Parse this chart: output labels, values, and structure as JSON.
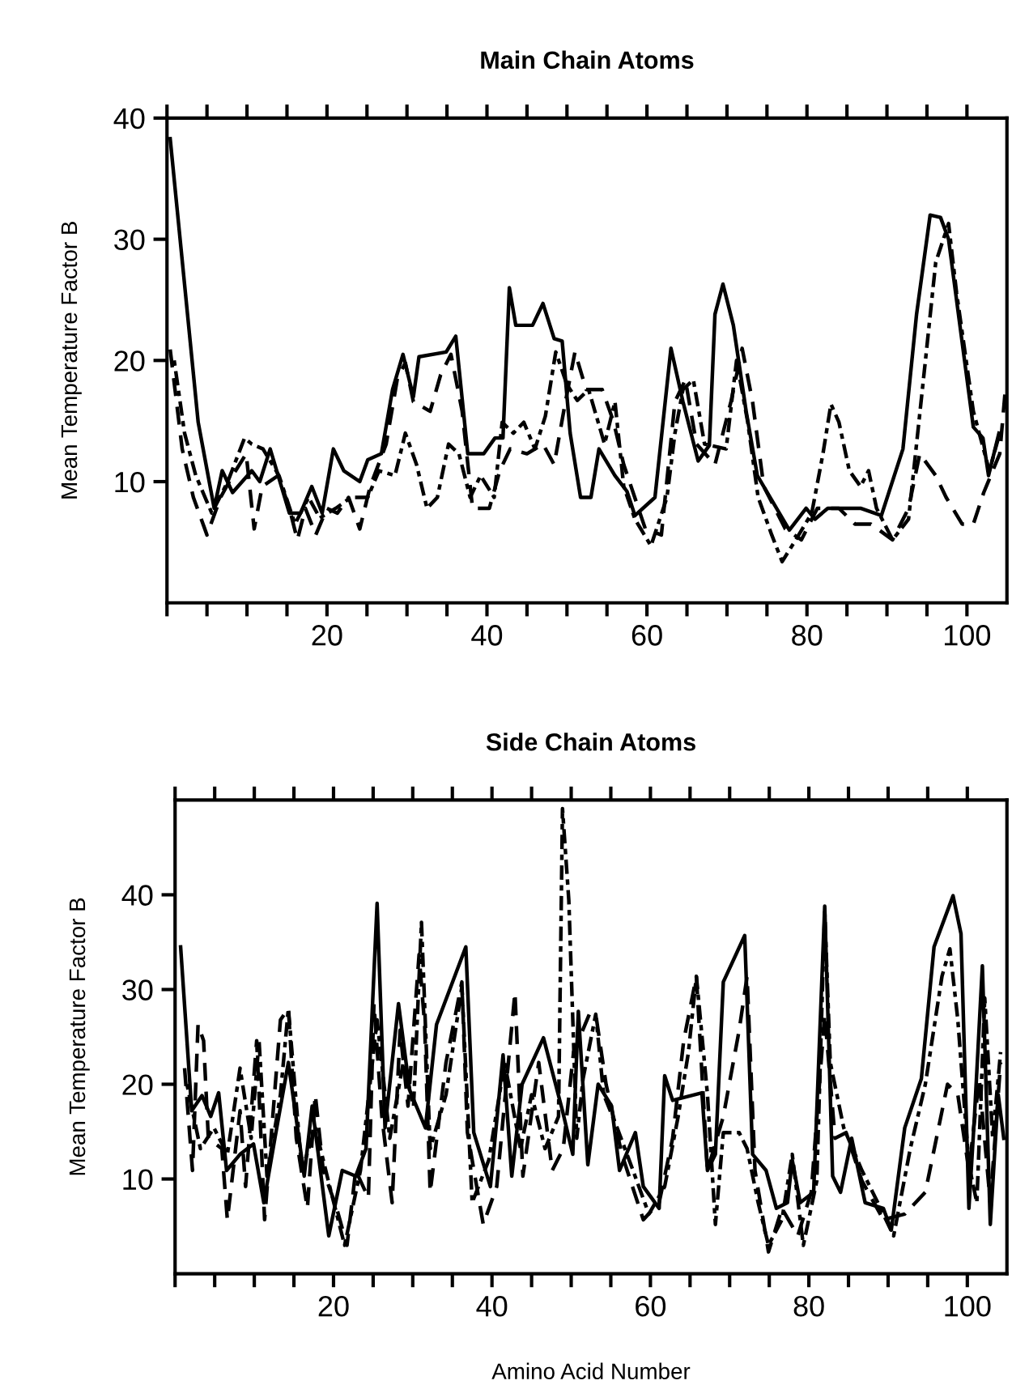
{
  "chart_data": [
    {
      "type": "line",
      "title": "Main Chain Atoms",
      "ylabel": "Mean Temperature Factor B",
      "xlim": [
        0,
        105
      ],
      "ylim": [
        0,
        40
      ],
      "xticks": [
        {
          "value": 0,
          "label": null
        },
        {
          "value": 5,
          "label": null
        },
        {
          "value": 10,
          "label": null
        },
        {
          "value": 15,
          "label": null
        },
        20,
        {
          "value": 25,
          "label": null
        },
        {
          "value": 30,
          "label": null
        },
        {
          "value": 35,
          "label": null
        },
        40,
        {
          "value": 45,
          "label": null
        },
        {
          "value": 50,
          "label": null
        },
        {
          "value": 55,
          "label": null
        },
        60,
        {
          "value": 65,
          "label": null
        },
        {
          "value": 70,
          "label": null
        },
        {
          "value": 75,
          "label": null
        },
        80,
        {
          "value": 85,
          "label": null
        },
        {
          "value": 90,
          "label": null
        },
        {
          "value": 95,
          "label": null
        },
        100
      ],
      "yticks": [
        10,
        20,
        30,
        40
      ],
      "series": [
        {
          "color": "#000000",
          "line_style": "solid",
          "x": [
            0.4,
            3.9,
            5.9,
            6.9,
            8.2,
            10.6,
            11.6,
            12.9,
            15.3,
            16.7,
            18.1,
            19.4,
            20.8,
            22.1,
            24.1,
            25.1,
            26.8,
            28.2,
            29.5,
            30.8,
            31.5,
            34.9,
            36.1,
            37.6,
            39.6,
            41,
            42,
            42.8,
            43.6,
            45.7,
            47,
            48.4,
            49.4,
            50.4,
            51.7,
            53,
            54,
            56,
            57.5,
            58.5,
            61,
            63,
            64.5,
            66.4,
            67.8,
            68.5,
            69.5,
            70.8,
            72.4,
            73.8,
            77.8,
            79.9,
            81,
            82.6,
            86.7,
            89.3,
            92,
            93.7,
            95.4,
            96.7,
            97.7,
            100.8,
            102,
            102.7,
            104
          ],
          "values": [
            38.3,
            14.9,
            7.8,
            10.9,
            9.1,
            10.9,
            10,
            12.7,
            7.4,
            7.4,
            9.6,
            7.4,
            12.7,
            10.9,
            10,
            11.8,
            12.3,
            17.6,
            20.5,
            17,
            20.3,
            20.7,
            22,
            12.3,
            12.3,
            13.6,
            13.6,
            26,
            22.9,
            22.9,
            24.7,
            21.8,
            21.6,
            14,
            8.7,
            8.7,
            12.7,
            10.5,
            9.2,
            7.2,
            8.7,
            21,
            16.6,
            11.7,
            13,
            23.8,
            26.3,
            22.9,
            15.8,
            10.5,
            6,
            7.8,
            6.9,
            7.8,
            7.8,
            7.2,
            12.7,
            23.8,
            32,
            31.8,
            30,
            14.5,
            13.6,
            10.5,
            14
          ]
        },
        {
          "color": "#000000",
          "line_style": "dashed",
          "x": [
            0.4,
            1.9,
            3.3,
            5,
            6.7,
            8.2,
            9.9,
            10.9,
            11.9,
            13.9,
            15.3,
            16.3,
            17.3,
            18.6,
            20,
            21.3,
            22.7,
            24.1,
            25.4,
            27.4,
            28.8,
            29.8,
            30.8,
            32.9,
            34.2,
            35.5,
            36.9,
            38.2,
            40.3,
            41.6,
            42.9,
            45,
            47,
            48.4,
            49.7,
            51,
            52.4,
            54.4,
            55.8,
            57.1,
            59.8,
            61.8,
            63.5,
            64.8,
            66.2,
            68.5,
            70.5,
            71.9,
            73.2,
            74.6,
            77.3,
            79.3,
            81.3,
            84,
            86,
            88,
            90.7,
            92.7,
            94.1,
            96.1,
            97.4,
            99.4,
            100.8,
            102.1,
            104.1,
            104.8
          ],
          "values": [
            20.9,
            12.7,
            8.7,
            5.6,
            8.7,
            10.5,
            12.3,
            6.1,
            9.6,
            10.5,
            7.8,
            5.2,
            7.8,
            5.6,
            7.8,
            7.4,
            8.7,
            6.1,
            9.6,
            13.1,
            18.5,
            19.8,
            16.6,
            15.8,
            18.8,
            20.5,
            15.8,
            7.8,
            7.8,
            10.9,
            12.7,
            12.3,
            13.1,
            11.4,
            16.2,
            20.7,
            17.6,
            17.6,
            15,
            11.4,
            6.1,
            5.6,
            16.6,
            18.4,
            13.1,
            11.4,
            16.6,
            21,
            16.6,
            9.6,
            6.1,
            5.2,
            7.8,
            7.8,
            6.5,
            6.5,
            5.2,
            7.8,
            12.3,
            10.5,
            8.7,
            6.5,
            6.5,
            9.1,
            12.3,
            17.6
          ]
        },
        {
          "color": "#000000",
          "line_style": "dotted",
          "x": [
            0.9,
            2.2,
            3.6,
            5.6,
            7.6,
            9.7,
            10.6,
            12,
            14,
            16,
            17.7,
            19.1,
            21.1,
            23,
            25.1,
            26.5,
            28.5,
            29.8,
            31.2,
            32.5,
            33.8,
            35.2,
            36.5,
            37.9,
            39.2,
            40.9,
            41.9,
            43.3,
            44.6,
            46,
            47.3,
            48.6,
            50,
            51.3,
            52.7,
            54.7,
            56,
            57.1,
            58.5,
            60.5,
            62.5,
            63.5,
            64.5,
            65.8,
            67.2,
            69.9,
            71.2,
            72.6,
            73.9,
            75.6,
            76.9,
            78.6,
            80.6,
            82,
            83,
            84,
            85.3,
            86.7,
            87.7,
            88.7,
            90.7,
            92.7,
            94.7,
            96.1,
            97.7,
            98.7,
            100.8,
            102.8,
            104.1
          ],
          "values": [
            20,
            14,
            10.5,
            7.4,
            10,
            13.6,
            13.1,
            12.7,
            10.5,
            6.5,
            8.7,
            7,
            7.8,
            8.7,
            8.7,
            10.9,
            10.5,
            14,
            11.4,
            7.8,
            8.7,
            13.1,
            12.3,
            8.7,
            10.5,
            8.7,
            14.9,
            14,
            14.9,
            12.7,
            15.4,
            20.7,
            18,
            16.7,
            17.6,
            13.1,
            16.6,
            9.6,
            6.9,
            4.7,
            8.7,
            14,
            17.6,
            18.4,
            13.1,
            12.7,
            20,
            14.9,
            8.7,
            5.6,
            3.4,
            5.2,
            7.4,
            12.3,
            16.4,
            14.9,
            10.9,
            9.6,
            10.9,
            7.8,
            5.2,
            6.9,
            19.3,
            28.1,
            31.3,
            25.6,
            15.8,
            10.9,
            14
          ]
        }
      ]
    },
    {
      "type": "line",
      "title": "Side Chain Atoms",
      "xlabel": "Amino Acid Number",
      "ylabel": "Mean Temperature Factor B",
      "xlim": [
        0,
        105
      ],
      "ylim": [
        0,
        50
      ],
      "xticks": [
        {
          "value": 0,
          "label": null
        },
        {
          "value": 5,
          "label": null
        },
        {
          "value": 10,
          "label": null
        },
        {
          "value": 15,
          "label": null
        },
        20,
        {
          "value": 25,
          "label": null
        },
        {
          "value": 30,
          "label": null
        },
        {
          "value": 35,
          "label": null
        },
        40,
        {
          "value": 45,
          "label": null
        },
        {
          "value": 50,
          "label": null
        },
        {
          "value": 55,
          "label": null
        },
        60,
        {
          "value": 65,
          "label": null
        },
        {
          "value": 70,
          "label": null
        },
        {
          "value": 75,
          "label": null
        },
        80,
        {
          "value": 85,
          "label": null
        },
        {
          "value": 90,
          "label": null
        },
        {
          "value": 95,
          "label": null
        },
        100
      ],
      "yticks": [
        10,
        20,
        30,
        40
      ],
      "series": [
        {
          "color": "#000000",
          "line_style": "solid",
          "x": [
            0.7,
            2.1,
            3.4,
            4.5,
            5.5,
            6.5,
            8.2,
            9.9,
            11.2,
            12.6,
            14.3,
            16.3,
            17.3,
            19.4,
            21.1,
            22.8,
            24.1,
            25.5,
            26.5,
            28.2,
            29.6,
            31.6,
            33,
            36.7,
            37.7,
            39.8,
            41.4,
            42.5,
            43.8,
            46.5,
            48.9,
            50.2,
            50.9,
            52.1,
            53.4,
            55.1,
            56.1,
            58.1,
            59.1,
            61.1,
            61.8,
            62.8,
            64.2,
            66.5,
            67.2,
            68.2,
            69.2,
            71.9,
            72.9,
            74.6,
            75.9,
            77.3,
            77.9,
            78.9,
            80.6,
            82,
            83,
            84,
            85.4,
            87.1,
            89.4,
            90.4,
            92.1,
            94.2,
            95.8,
            98.2,
            99.2,
            100.2,
            100.9,
            101.9,
            102.9,
            103.9,
            104.6
          ],
          "values": [
            34.5,
            17.2,
            18.8,
            16.6,
            19.1,
            10.9,
            12.6,
            13.7,
            7.5,
            14.3,
            22.3,
            10.3,
            17.7,
            4,
            10.9,
            10.3,
            13.2,
            39.1,
            15.4,
            28.5,
            19.4,
            15.4,
            26.3,
            34.5,
            14.9,
            9.2,
            23.1,
            10.3,
            20,
            24.9,
            17.2,
            12.6,
            27.7,
            11.5,
            20,
            17.7,
            10.9,
            14.9,
            9.2,
            6.9,
            20.9,
            18.3,
            18.6,
            19.1,
            10.9,
            12.6,
            30.8,
            35.7,
            12.6,
            10.9,
            6.9,
            7.5,
            12,
            7.5,
            8.6,
            38.8,
            10.3,
            8.6,
            14.3,
            7.5,
            6.9,
            4.6,
            15.4,
            20.6,
            34.5,
            39.9,
            35.9,
            6.9,
            16.6,
            32.5,
            5.2,
            18.9,
            14.3
          ]
        },
        {
          "color": "#000000",
          "line_style": "dashed",
          "x": [
            1.2,
            2.2,
            2.9,
            3.6,
            4.2,
            5.9,
            6.6,
            8.2,
            8.9,
            10.3,
            11.3,
            13.3,
            14.3,
            15.3,
            16.7,
            17.7,
            18.7,
            20.4,
            21.7,
            22.8,
            24.4,
            25.1,
            26.1,
            27.4,
            28.4,
            29.4,
            30.8,
            31.5,
            32.2,
            34.2,
            36.2,
            36.9,
            38.9,
            40.6,
            42.9,
            43.9,
            45.9,
            47.6,
            49,
            50.3,
            52.3,
            53.1,
            54.4,
            56.4,
            59.1,
            61.1,
            62.8,
            64.2,
            65.8,
            67.2,
            69.2,
            71.2,
            72.2,
            73.2,
            74.9,
            76.6,
            78.6,
            80.3,
            82,
            83.3,
            84.7,
            86.7,
            89.4,
            92.1,
            94.7,
            97.5,
            98.8,
            100.2,
            101.5,
            102.9,
            104.2
          ],
          "values": [
            21.7,
            10.9,
            26.3,
            24.6,
            14.3,
            13.2,
            5.7,
            17.2,
            9.2,
            24.6,
            5.7,
            26.8,
            28,
            14.3,
            6.9,
            18.9,
            10.9,
            6.9,
            3,
            10.9,
            8,
            28.5,
            16.6,
            7.5,
            25.7,
            17.7,
            33.7,
            26.3,
            8.6,
            22.3,
            30.8,
            14.9,
            5.2,
            9.2,
            29.7,
            10.3,
            22.3,
            10.9,
            13.2,
            23.4,
            27.4,
            27.4,
            20,
            12.6,
            5.7,
            7.5,
            14.3,
            24.6,
            31.4,
            10.9,
            16.6,
            25.7,
            31.4,
            10.9,
            2.3,
            6.9,
            4,
            8.6,
            27.4,
            14.3,
            14.9,
            9.8,
            5.7,
            6.3,
            8.6,
            20,
            18.9,
            10.9,
            20.6,
            7.5,
            22.3
          ]
        },
        {
          "color": "#000000",
          "line_style": "dotted",
          "x": [
            1.5,
            3.2,
            4.9,
            6.6,
            8.2,
            9.6,
            10.6,
            11.6,
            13.3,
            14.3,
            16,
            17.7,
            19.7,
            21.4,
            23.4,
            25.5,
            27.1,
            28.8,
            30.1,
            31.1,
            32.2,
            34.2,
            36.2,
            37.5,
            39.6,
            41.6,
            43.6,
            45,
            46.7,
            48.4,
            48.9,
            49.7,
            50.7,
            51.5,
            53.1,
            54.1,
            55.8,
            57.8,
            59.8,
            61.8,
            63.5,
            64.8,
            65.8,
            67.2,
            68.2,
            69.2,
            71.2,
            72.2,
            73.6,
            74.9,
            76.6,
            77.9,
            79.3,
            81,
            82,
            82.7,
            84.4,
            86.7,
            88.7,
            90.7,
            92.8,
            94.7,
            96.8,
            97.8,
            98.8,
            100.2,
            101.2,
            102.2,
            103.2,
            104.2
          ],
          "values": [
            20,
            13.2,
            15.4,
            12.6,
            21.7,
            14.3,
            24.6,
            10.3,
            18.9,
            28,
            10.9,
            15.4,
            8.6,
            3,
            10.9,
            26.8,
            14.3,
            22.3,
            17.7,
            37.1,
            13.2,
            18.9,
            30.3,
            7.5,
            12,
            22.3,
            13.2,
            18.9,
            13.2,
            16.6,
            49.1,
            39.4,
            14.3,
            20.6,
            27.4,
            18.9,
            15.4,
            10.9,
            6.3,
            9.2,
            16.6,
            23.4,
            31.4,
            18.9,
            5.2,
            14.9,
            14.9,
            13.2,
            7.5,
            3,
            5.7,
            12.6,
            3,
            9.8,
            38.3,
            22.3,
            15.4,
            10.9,
            7.5,
            4,
            13.2,
            20,
            31.4,
            34.3,
            26.8,
            11.5,
            7.5,
            29.1,
            14.3,
            23.4
          ]
        }
      ]
    }
  ]
}
